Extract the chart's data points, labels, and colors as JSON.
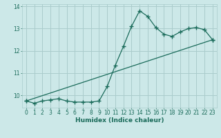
{
  "xlabel": "Humidex (Indice chaleur)",
  "bg_color": "#cce8e8",
  "grid_color": "#aacccc",
  "line_color": "#1a6b5a",
  "xlim": [
    -0.5,
    23.5
  ],
  "ylim": [
    9.45,
    14.1
  ],
  "yticks": [
    10,
    11,
    12,
    13,
    14
  ],
  "xticks": [
    0,
    1,
    2,
    3,
    4,
    5,
    6,
    7,
    8,
    9,
    10,
    11,
    12,
    13,
    14,
    15,
    16,
    17,
    18,
    19,
    20,
    21,
    22,
    23
  ],
  "line1_x": [
    0,
    1,
    2,
    3,
    4,
    5,
    6,
    7,
    8,
    9,
    10,
    11,
    12,
    13,
    14,
    15,
    16,
    17,
    18,
    19,
    20,
    21,
    22,
    23
  ],
  "line1_y": [
    9.75,
    9.65,
    9.75,
    9.8,
    9.85,
    9.75,
    9.7,
    9.7,
    9.7,
    9.75,
    10.4,
    11.35,
    12.2,
    13.1,
    13.8,
    13.55,
    13.05,
    12.75,
    12.65,
    12.85,
    13.0,
    13.05,
    12.95,
    12.5
  ],
  "line2_x": [
    0,
    23
  ],
  "line2_y": [
    9.75,
    12.5
  ],
  "font_size_label": 6.5,
  "font_size_tick": 5.5,
  "marker_size": 2.5,
  "linewidth": 0.9
}
